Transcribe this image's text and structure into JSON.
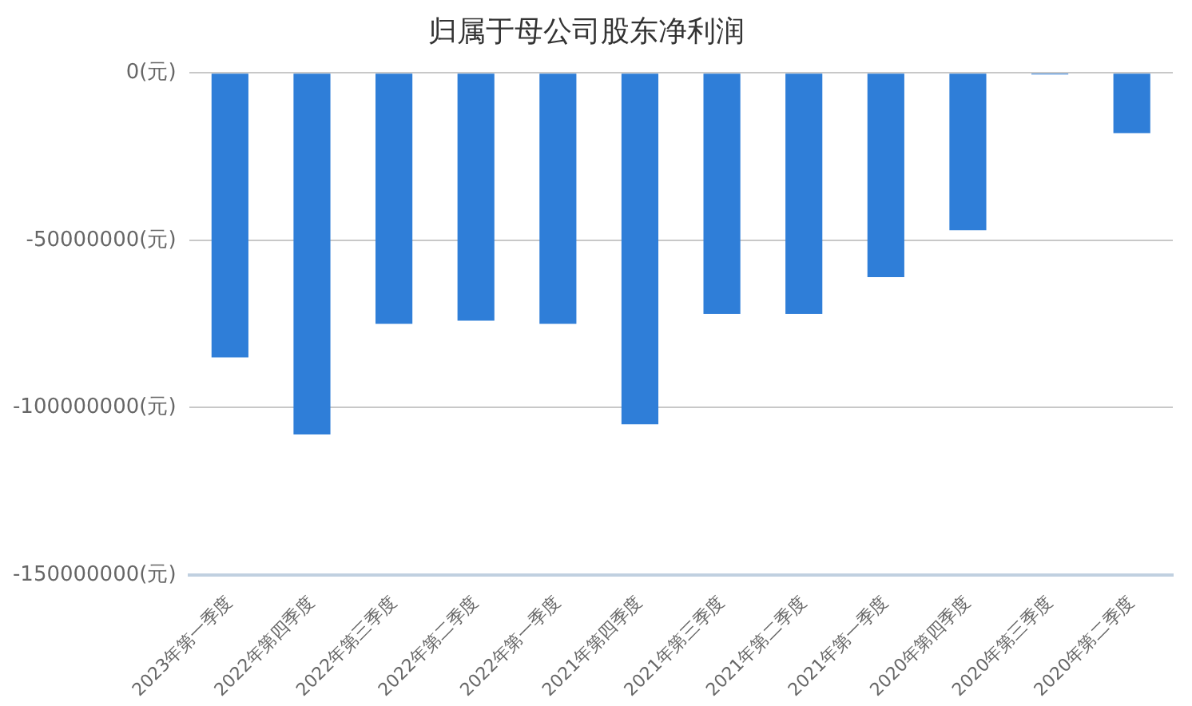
{
  "chart_data": {
    "type": "bar",
    "title": "归属于母公司股东净利润",
    "categories": [
      "2023年第一季度",
      "2022年第四季度",
      "2022年第三季度",
      "2022年第二季度",
      "2022年第一季度",
      "2021年第四季度",
      "2021年第三季度",
      "2021年第二季度",
      "2021年第一季度",
      "2020年第四季度",
      "2020年第三季度",
      "2020年第二季度"
    ],
    "values": [
      -85000000,
      -108000000,
      -75000000,
      -74000000,
      -75000000,
      -105000000,
      -72000000,
      -72000000,
      -61000000,
      -47000000,
      -500000,
      -18000000
    ],
    "color": "#2f7ed8",
    "ylim": [
      -150000000,
      0
    ],
    "yticks": [
      {
        "value": -150000000,
        "label": "-150000000(元)"
      },
      {
        "value": -100000000,
        "label": "-100000000(元)"
      },
      {
        "value": -50000000,
        "label": "-50000000(元)"
      },
      {
        "value": 0,
        "label": "0(元)"
      }
    ],
    "grid": "y",
    "legend": false
  }
}
